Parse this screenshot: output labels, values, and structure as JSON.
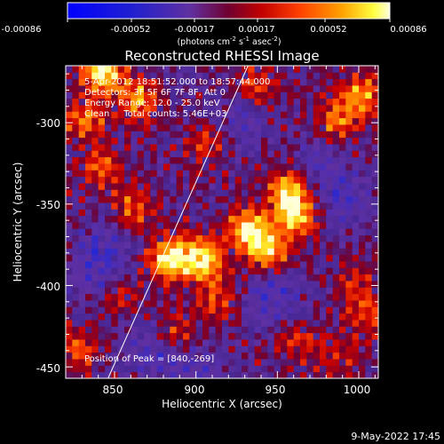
{
  "chart_data": {
    "type": "heatmap",
    "title": "Reconstructed RHESSI Image",
    "xlabel": "Heliocentric X (arcsec)",
    "ylabel": "Heliocentric Y (arcsec)",
    "xlim": [
      820,
      1012
    ],
    "ylim": [
      -457,
      -265
    ],
    "x_ticks": [
      850,
      900,
      950,
      1000
    ],
    "y_ticks": [
      -300,
      -350,
      -400,
      -450
    ],
    "colorbar": {
      "ticks": [
        "-0.00086",
        "-0.00052",
        "-0.00017",
        "0.00017",
        "0.00052",
        "0.00086"
      ],
      "unit_main": "(photons cm",
      "unit_sup1": "-2",
      "unit_mid": " s",
      "unit_sup2": "-1",
      "unit_tail": " asec",
      "unit_sup3": "-2",
      "unit_end": ")",
      "range": [
        -0.00086,
        0.00086
      ]
    },
    "info_lines": [
      "5-Apr-2012 18:51:52.000 to 18:57:44.000",
      "Detectors: 3F 5F 6F 7F 8F, Att 0",
      "Energy Range: 12.0 - 25.0 keV",
      "Clean     Total counts: 5.46E+03"
    ],
    "peak_label": "Position of Peak = [840,-269]",
    "limb_line": {
      "x": [
        846,
        932
      ],
      "y": [
        -457,
        -265
      ]
    },
    "hotspots": [
      {
        "x": 882,
        "y": -386,
        "value": 0.00086
      },
      {
        "x": 902,
        "y": -385,
        "value": 0.0008
      },
      {
        "x": 930,
        "y": -367,
        "value": 0.00075
      },
      {
        "x": 955,
        "y": -345,
        "value": 0.0008
      },
      {
        "x": 942,
        "y": -380,
        "value": 0.0007
      },
      {
        "x": 960,
        "y": -360,
        "value": 0.0006
      },
      {
        "x": 840,
        "y": -270,
        "value": 0.00086
      },
      {
        "x": 862,
        "y": -288,
        "value": 0.0006
      },
      {
        "x": 830,
        "y": -300,
        "value": 0.0005
      },
      {
        "x": 1000,
        "y": -285,
        "value": 0.0006
      },
      {
        "x": 985,
        "y": -300,
        "value": 0.0005
      },
      {
        "x": 935,
        "y": -280,
        "value": 0.0004
      },
      {
        "x": 905,
        "y": -315,
        "value": 0.00035
      },
      {
        "x": 860,
        "y": -355,
        "value": 0.00045
      },
      {
        "x": 840,
        "y": -330,
        "value": 0.0004
      },
      {
        "x": 885,
        "y": -430,
        "value": 0.00035
      },
      {
        "x": 910,
        "y": -410,
        "value": 0.0004
      },
      {
        "x": 850,
        "y": -410,
        "value": 0.0003
      },
      {
        "x": 960,
        "y": -435,
        "value": 0.0003
      },
      {
        "x": 995,
        "y": -400,
        "value": 0.0003
      },
      {
        "x": 1005,
        "y": -420,
        "value": 0.0004
      },
      {
        "x": 985,
        "y": -445,
        "value": 0.0003
      },
      {
        "x": 825,
        "y": -440,
        "value": 0.0004
      }
    ],
    "coldspots": [
      {
        "x": 945,
        "y": -410,
        "value": -0.00035
      },
      {
        "x": 900,
        "y": -455,
        "value": -0.0003
      },
      {
        "x": 870,
        "y": -440,
        "value": -0.0003
      },
      {
        "x": 835,
        "y": -395,
        "value": -0.0003
      },
      {
        "x": 975,
        "y": -330,
        "value": -0.00025
      },
      {
        "x": 990,
        "y": -350,
        "value": -0.00025
      },
      {
        "x": 925,
        "y": -300,
        "value": -0.00025
      },
      {
        "x": 845,
        "y": -375,
        "value": -0.00025
      }
    ]
  },
  "footer": {
    "date": "9-May-2022 17:45"
  }
}
